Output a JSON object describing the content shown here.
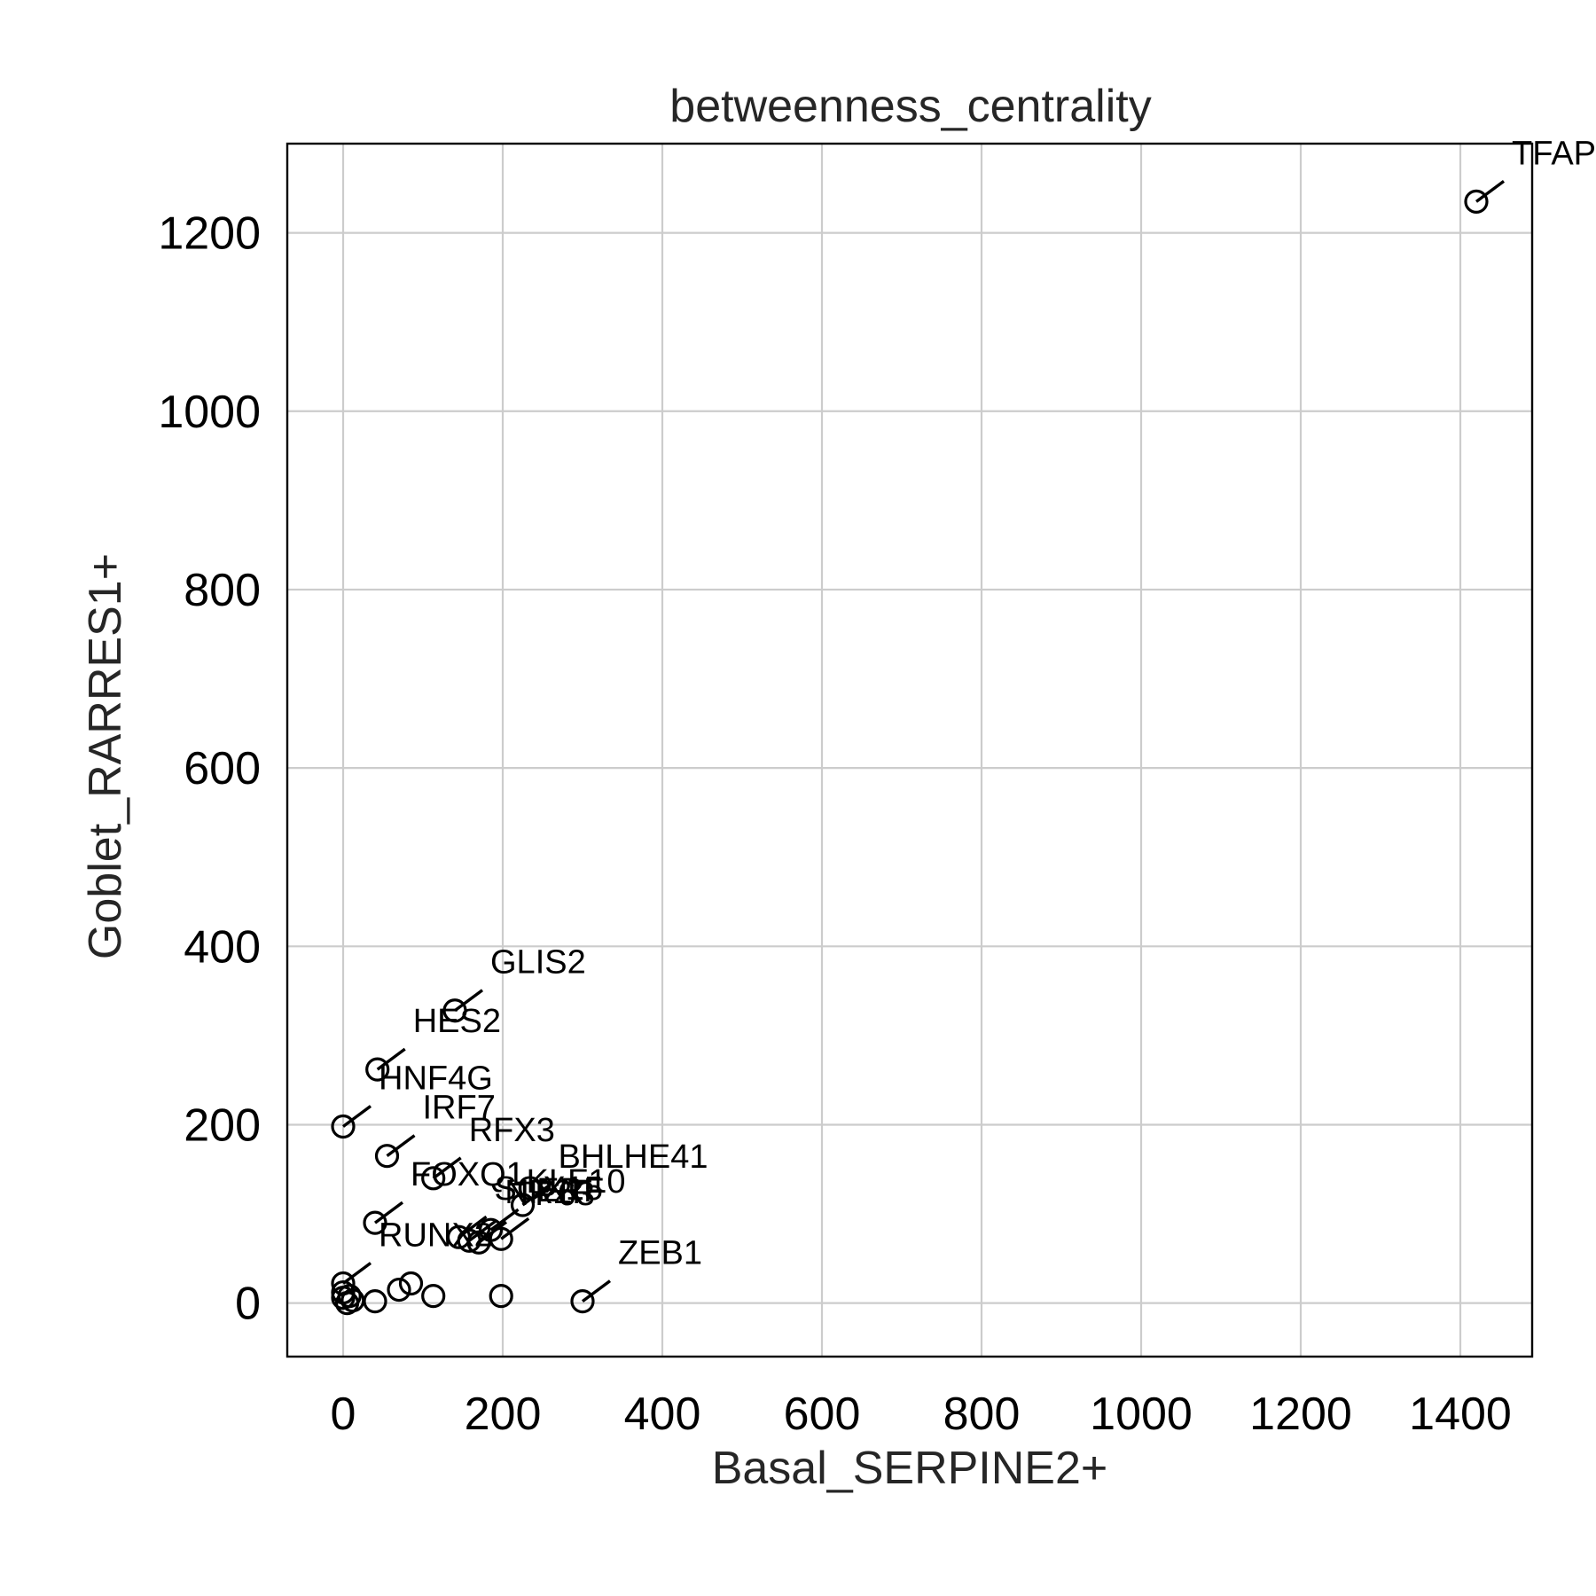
{
  "chart_data": {
    "type": "scatter",
    "title": "betweenness_centrality",
    "xlabel": "Basal_SERPINE2+",
    "ylabel": "Goblet_RARRES1+",
    "xlim": [
      -70,
      1490
    ],
    "ylim": [
      -60,
      1300
    ],
    "x_ticks": [
      0,
      200,
      400,
      600,
      800,
      1000,
      1200,
      1400
    ],
    "y_ticks": [
      0,
      200,
      400,
      600,
      800,
      1000,
      1200
    ],
    "grid": true,
    "marker": "open-circle",
    "colors": {
      "marker": "#000000",
      "grid": "#cccccc",
      "text": "#262626"
    },
    "points": [
      {
        "x": 1420,
        "y": 1235,
        "label": "TFAP"
      },
      {
        "x": 140,
        "y": 328,
        "label": "GLIS2"
      },
      {
        "x": 43,
        "y": 262,
        "label": "HES2"
      },
      {
        "x": 0,
        "y": 198,
        "label": "HNF4G"
      },
      {
        "x": 55,
        "y": 165,
        "label": "IRF7"
      },
      {
        "x": 113,
        "y": 140,
        "label": "RFX3"
      },
      {
        "x": 225,
        "y": 110,
        "label": "BHLHE41"
      },
      {
        "x": 40,
        "y": 90,
        "label": "FOXQ1"
      },
      {
        "x": 185,
        "y": 82,
        "label": "KLF10"
      },
      {
        "x": 145,
        "y": 74,
        "label": "SOX15"
      },
      {
        "x": 158,
        "y": 70,
        "label": "NR2F"
      },
      {
        "x": 170,
        "y": 68,
        "label": "TP63"
      },
      {
        "x": 198,
        "y": 72,
        "label": "ERF"
      },
      {
        "x": 300,
        "y": 2,
        "label": "ZEB1"
      },
      {
        "x": 0,
        "y": 22,
        "label": "RUNX2"
      },
      {
        "x": 198,
        "y": 8,
        "label": ""
      },
      {
        "x": 113,
        "y": 8,
        "label": ""
      },
      {
        "x": 85,
        "y": 22,
        "label": ""
      },
      {
        "x": 70,
        "y": 15,
        "label": ""
      },
      {
        "x": 40,
        "y": 2,
        "label": ""
      },
      {
        "x": 12,
        "y": 3,
        "label": ""
      },
      {
        "x": 5,
        "y": 0,
        "label": ""
      },
      {
        "x": 0,
        "y": 6,
        "label": ""
      },
      {
        "x": 0,
        "y": 12,
        "label": ""
      },
      {
        "x": 8,
        "y": 8,
        "label": ""
      }
    ]
  }
}
